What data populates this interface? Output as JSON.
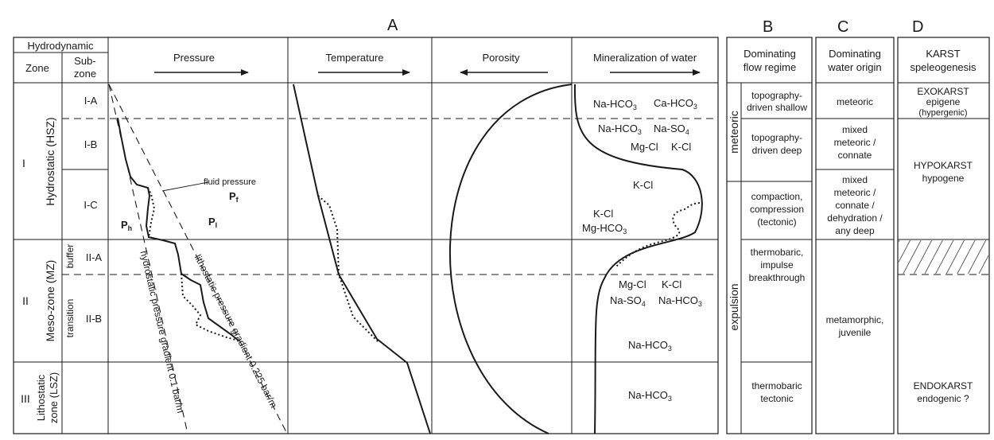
{
  "section_labels": {
    "a": "A",
    "b": "B",
    "c": "C",
    "d": "D"
  },
  "header": {
    "hydrodynamic": "Hydrodynamic",
    "zone": "Zone",
    "subzone_line1": "Sub-",
    "subzone_line2": "zone",
    "pressure": "Pressure",
    "temperature": "Temperature",
    "porosity": "Porosity",
    "mineralization": "Mineralization of water",
    "flow_line1": "Dominating",
    "flow_line2": "flow regime",
    "origin_line1": "Dominating",
    "origin_line2": "water origin",
    "karst_line1": "KARST",
    "karst_line2": "speleogenesis"
  },
  "zones": {
    "zone_i_numeral": "I",
    "zone_i_name": "Hydrostatic (HSZ)",
    "zone_ii_numeral": "II",
    "zone_ii_name": "Meso-zone (MZ)",
    "zone_iii_numeral": "III",
    "zone_iii_line1": "Lithostatic",
    "zone_iii_line2": "zone (LSZ)"
  },
  "subzones": {
    "i_a": "I-A",
    "i_b": "I-B",
    "i_c": "I-C",
    "ii_a": "II-A",
    "ii_b": "II-B",
    "buffer": "buffer",
    "transition": "transition"
  },
  "pressure_labels": {
    "fluid_pressure": "fluid pressure",
    "pf": "P",
    "pf_sub": "f",
    "ph": "P",
    "ph_sub": "h",
    "pl": "P",
    "pl_sub": "l",
    "hydrostatic_gradient": "hydrostatic pressure gradient 0.1 bar/m",
    "lithostatic_gradient": "lithostatic pressure gradient 0.225 bar/m"
  },
  "mineral_labels": {
    "ia_left": "Na-HCO",
    "ia_left_sub": "3",
    "ia_right": "Ca-HCO",
    "ia_right_sub": "3",
    "ib_left": "Na-HCO",
    "ib_left_sub": "3",
    "ib_right": "Na-SO",
    "ib_right_sub": "4",
    "ib_mg": "Mg-Cl",
    "ib_k": "K-Cl",
    "ic_k_top": "K-Cl",
    "ic_k_mid": "K-Cl",
    "ic_mg": "Mg-HCO",
    "ic_mg_sub": "3",
    "iib_mg": "Mg-Cl",
    "iib_k": "K-Cl",
    "iib_na_so": "Na-SO",
    "iib_na_so_sub": "4",
    "iib_na_hco": "Na-HCO",
    "iib_na_hco_sub": "3",
    "iib_low": "Na-HCO",
    "iib_low_sub": "3",
    "iii": "Na-HCO",
    "iii_sub": "3"
  },
  "flow": {
    "meteoric": "meteoric",
    "expulsion": "expulsion",
    "shallow_line1": "topography-",
    "shallow_line2": "driven shallow",
    "deep_line1": "topography-",
    "deep_line2": "driven deep",
    "compaction_line1": "compaction,",
    "compaction_line2": "compression",
    "compaction_line3": "(tectonic)",
    "impulse_line1": "thermobaric,",
    "impulse_line2": "impulse",
    "impulse_line3": "breakthrough",
    "tectonic_line1": "thermobaric",
    "tectonic_line2": "tectonic"
  },
  "origin": {
    "meteoric": "meteoric",
    "mixed1_line1": "mixed",
    "mixed1_line2": "meteoric /",
    "mixed1_line3": "connate",
    "mixed2_line1": "mixed",
    "mixed2_line2": "meteoric /",
    "mixed2_line3": "connate /",
    "mixed2_line4": "dehydration /",
    "mixed2_line5": "any deep",
    "meta_line1": "metamorphic,",
    "meta_line2": "juvenile"
  },
  "karst": {
    "exo_line1": "EXOKARST",
    "exo_line2": "epigene",
    "exo_line3": "(hypergenic)",
    "hypo_line1": "HYPOKARST",
    "hypo_line2": "hypogene",
    "endo_line1": "ENDOKARST",
    "endo_line2": "endogenic ?"
  }
}
